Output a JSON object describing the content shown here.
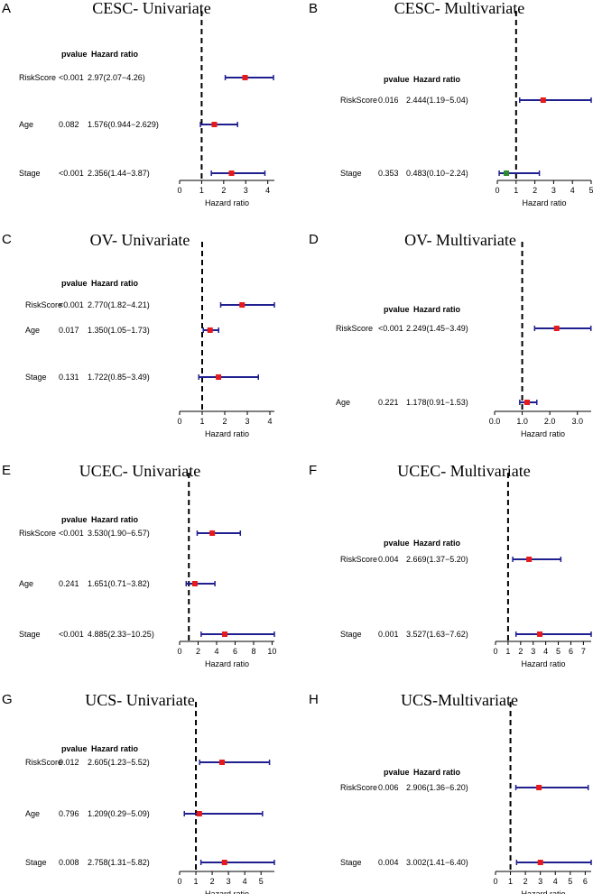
{
  "chart_data": [
    {
      "type": "forest",
      "label": "A",
      "title": "CESC- Univariate",
      "header": {
        "pvalue": "pvalue",
        "hr": "Hazard ratio"
      },
      "xlabel": "Hazard ratio",
      "xlim": [
        0,
        4.3
      ],
      "ticks": [
        "0",
        "1",
        "2",
        "3",
        "4"
      ],
      "tick_values": [
        0,
        1,
        2,
        3,
        4
      ],
      "reference": 1,
      "rows": [
        {
          "variable": "RiskScore",
          "pvalue": "<0.001",
          "hr_text": "2.97(2.07−4.26)",
          "hr": 2.97,
          "low": 2.07,
          "high": 4.26
        },
        {
          "variable": "Age",
          "pvalue": "0.082",
          "hr_text": "1.576(0.944−2.629)",
          "hr": 1.576,
          "low": 0.944,
          "high": 2.629
        },
        {
          "variable": "Stage",
          "pvalue": "<0.001",
          "hr_text": "2.356(1.44−3.87)",
          "hr": 2.356,
          "low": 1.44,
          "high": 3.87
        }
      ]
    },
    {
      "type": "forest",
      "label": "B",
      "title": "CESC- Multivariate",
      "header": {
        "pvalue": "pvalue",
        "hr": "Hazard ratio"
      },
      "xlabel": "Hazard ratio",
      "xlim": [
        0,
        5
      ],
      "ticks": [
        "0",
        "1",
        "2",
        "3",
        "4",
        "5"
      ],
      "tick_values": [
        0,
        1,
        2,
        3,
        4,
        5
      ],
      "reference": 1,
      "rows": [
        {
          "variable": "RiskScore",
          "pvalue": "0.016",
          "hr_text": "2.444(1.19−5.04)",
          "hr": 2.444,
          "low": 1.19,
          "high": 5.04
        },
        {
          "variable": "Stage",
          "pvalue": "0.353",
          "hr_text": "0.483(0.10−2.24)",
          "hr": 0.483,
          "low": 0.1,
          "high": 2.24,
          "protective": true
        }
      ]
    },
    {
      "type": "forest",
      "label": "C",
      "title": "OV- Univariate",
      "header": {
        "pvalue": "pvalue",
        "hr": "Hazard ratio"
      },
      "xlabel": "Hazard ratio",
      "xlim": [
        0,
        4.2
      ],
      "ticks": [
        "0",
        "1",
        "2",
        "3",
        "4"
      ],
      "tick_values": [
        0,
        1,
        2,
        3,
        4
      ],
      "reference": 1,
      "rows": [
        {
          "variable": "RiskScore",
          "pvalue": "<0.001",
          "hr_text": "2.770(1.82−4.21)",
          "hr": 2.77,
          "low": 1.82,
          "high": 4.21
        },
        {
          "variable": "Age",
          "pvalue": "0.017",
          "hr_text": "1.350(1.05−1.73)",
          "hr": 1.35,
          "low": 1.05,
          "high": 1.73
        },
        {
          "variable": "Stage",
          "pvalue": "0.131",
          "hr_text": "1.722(0.85−3.49)",
          "hr": 1.722,
          "low": 0.85,
          "high": 3.49
        }
      ]
    },
    {
      "type": "forest",
      "label": "D",
      "title": "OV- Multivariate",
      "header": {
        "pvalue": "pvalue",
        "hr": "Hazard ratio"
      },
      "xlabel": "Hazard ratio",
      "xlim": [
        0,
        3.5
      ],
      "ticks": [
        "0.0",
        "1.0",
        "2.0",
        "3.0"
      ],
      "tick_values": [
        0,
        1,
        2,
        3
      ],
      "reference": 1,
      "rows": [
        {
          "variable": "RiskScore",
          "pvalue": "<0.001",
          "hr_text": "2.249(1.45−3.49)",
          "hr": 2.249,
          "low": 1.45,
          "high": 3.49
        },
        {
          "variable": "Age",
          "pvalue": "0.221",
          "hr_text": "1.178(0.91−1.53)",
          "hr": 1.178,
          "low": 0.91,
          "high": 1.53
        }
      ]
    },
    {
      "type": "forest",
      "label": "E",
      "title": "UCEC- Univariate",
      "header": {
        "pvalue": "pvalue",
        "hr": "Hazard ratio"
      },
      "xlabel": "Hazard ratio",
      "xlim": [
        0,
        10.25
      ],
      "ticks": [
        "0",
        "2",
        "4",
        "6",
        "8",
        "10"
      ],
      "tick_values": [
        0,
        2,
        4,
        6,
        8,
        10
      ],
      "reference": 1,
      "rows": [
        {
          "variable": "RiskScore",
          "pvalue": "<0.001",
          "hr_text": "3.530(1.90−6.57)",
          "hr": 3.53,
          "low": 1.9,
          "high": 6.57
        },
        {
          "variable": "Age",
          "pvalue": "0.241",
          "hr_text": "1.651(0.71−3.82)",
          "hr": 1.651,
          "low": 0.71,
          "high": 3.82
        },
        {
          "variable": "Stage",
          "pvalue": "<0.001",
          "hr_text": "4.885(2.33−10.25)",
          "hr": 4.885,
          "low": 2.33,
          "high": 10.25
        }
      ]
    },
    {
      "type": "forest",
      "label": "F",
      "title": "UCEC- Multivariate",
      "header": {
        "pvalue": "pvalue",
        "hr": "Hazard ratio"
      },
      "xlabel": "Hazard ratio",
      "xlim": [
        0,
        7.62
      ],
      "ticks": [
        "0",
        "1",
        "2",
        "3",
        "4",
        "5",
        "6",
        "7"
      ],
      "tick_values": [
        0,
        1,
        2,
        3,
        4,
        5,
        6,
        7
      ],
      "reference": 1,
      "rows": [
        {
          "variable": "RiskScore",
          "pvalue": "0.004",
          "hr_text": "2.669(1.37−5.20)",
          "hr": 2.669,
          "low": 1.37,
          "high": 5.2
        },
        {
          "variable": "Stage",
          "pvalue": "0.001",
          "hr_text": "3.527(1.63−7.62)",
          "hr": 3.527,
          "low": 1.63,
          "high": 7.62
        }
      ]
    },
    {
      "type": "forest",
      "label": "G",
      "title": "UCS- Univariate",
      "header": {
        "pvalue": "pvalue",
        "hr": "Hazard ratio"
      },
      "xlabel": "Hazard ratio",
      "xlim": [
        0,
        5.82
      ],
      "ticks": [
        "0",
        "1",
        "2",
        "3",
        "4",
        "5"
      ],
      "tick_values": [
        0,
        1,
        2,
        3,
        4,
        5
      ],
      "reference": 1,
      "rows": [
        {
          "variable": "RiskScore",
          "pvalue": "0.012",
          "hr_text": "2.605(1.23−5.52)",
          "hr": 2.605,
          "low": 1.23,
          "high": 5.52
        },
        {
          "variable": "Age",
          "pvalue": "0.796",
          "hr_text": "1.209(0.29−5.09)",
          "hr": 1.209,
          "low": 0.29,
          "high": 5.09
        },
        {
          "variable": "Stage",
          "pvalue": "0.008",
          "hr_text": "2.758(1.31−5.82)",
          "hr": 2.758,
          "low": 1.31,
          "high": 5.82
        }
      ]
    },
    {
      "type": "forest",
      "label": "H",
      "title": "UCS-Multivariate",
      "header": {
        "pvalue": "pvalue",
        "hr": "Hazard ratio"
      },
      "xlabel": "Hazard ratio",
      "xlim": [
        0,
        6.4
      ],
      "ticks": [
        "0",
        "1",
        "2",
        "3",
        "4",
        "5",
        "6"
      ],
      "tick_values": [
        0,
        1,
        2,
        3,
        4,
        5,
        6
      ],
      "reference": 1,
      "rows": [
        {
          "variable": "RiskScore",
          "pvalue": "0.006",
          "hr_text": "2.906(1.36−6.20)",
          "hr": 2.906,
          "low": 1.36,
          "high": 6.2
        },
        {
          "variable": "Stage",
          "pvalue": "0.004",
          "hr_text": "3.002(1.41−6.40)",
          "hr": 3.002,
          "low": 1.41,
          "high": 6.4
        }
      ]
    }
  ],
  "colors": {
    "ci_line": "#1f1f8f",
    "point": "#e41a1c",
    "point_protective": "#2e8b2e",
    "reference_line": "#000000",
    "axis": "#000000"
  }
}
